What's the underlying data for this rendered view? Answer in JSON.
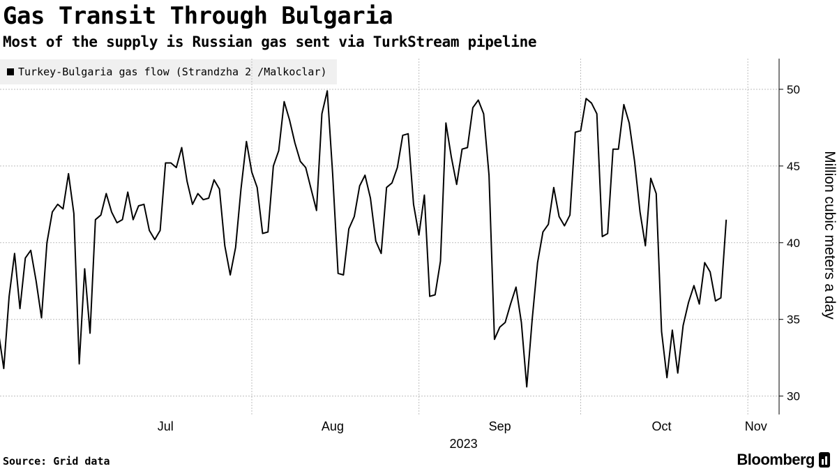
{
  "header": {
    "title": "Gas Transit Through Bulgaria",
    "subtitle": "Most of the supply is Russian gas sent via TurkStream pipeline"
  },
  "footer": {
    "source": "Source: Grid data",
    "brand": "Bloomberg",
    "brand_icon": "bar-chart-icon"
  },
  "chart_data": {
    "type": "line",
    "ylabel": "Million cubic meters a day",
    "xlabel": "2023",
    "ylim": [
      28.8,
      52
    ],
    "yticks": [
      30,
      35,
      40,
      45,
      50
    ],
    "grid": true,
    "y_axis_side": "right",
    "legend_position": "top-left",
    "x_range_day_of_year": [
      166.3,
      310.8
    ],
    "month_ticks": [
      {
        "label": "Jul",
        "day_of_year": 182,
        "centered": true
      },
      {
        "label": "Aug",
        "day_of_year": 213,
        "centered": true
      },
      {
        "label": "Sep",
        "day_of_year": 244,
        "centered": true
      },
      {
        "label": "Oct",
        "day_of_year": 274,
        "centered": true
      },
      {
        "label": "Nov",
        "day_of_year": 305,
        "centered": false
      }
    ],
    "series": [
      {
        "name": "Turkey-Bulgaria gas flow (Strandzha 2 /Malkoclar)",
        "color": "#000000",
        "start_date": "2023-06-15",
        "values": [
          34.2,
          31.8,
          36.5,
          39.3,
          35.7,
          39.0,
          39.5,
          37.5,
          35.1,
          40.0,
          42.0,
          42.5,
          42.2,
          44.5,
          41.9,
          32.1,
          38.3,
          34.1,
          41.5,
          41.8,
          43.2,
          42.0,
          41.3,
          41.5,
          43.3,
          41.5,
          42.4,
          42.5,
          40.8,
          40.2,
          40.8,
          45.2,
          45.2,
          44.9,
          46.2,
          44.0,
          42.5,
          43.2,
          42.8,
          42.9,
          44.1,
          43.5,
          39.8,
          37.9,
          39.7,
          43.5,
          46.6,
          44.6,
          43.6,
          40.6,
          40.7,
          45.0,
          46.0,
          49.2,
          48.0,
          46.5,
          45.3,
          44.9,
          43.5,
          42.1,
          48.4,
          49.9,
          44.5,
          38.0,
          37.9,
          40.9,
          41.7,
          43.7,
          44.4,
          42.9,
          40.1,
          39.3,
          43.6,
          43.9,
          44.9,
          47.0,
          47.1,
          42.5,
          40.5,
          43.1,
          36.5,
          36.6,
          38.8,
          47.8,
          45.6,
          43.8,
          46.1,
          46.2,
          48.8,
          49.3,
          48.4,
          44.4,
          33.7,
          34.5,
          34.8,
          36.0,
          37.1,
          34.8,
          30.6,
          35.0,
          38.7,
          40.7,
          41.2,
          43.6,
          41.7,
          41.1,
          41.8,
          47.2,
          47.3,
          49.4,
          49.1,
          48.4,
          40.4,
          40.6,
          46.1,
          46.1,
          49.0,
          47.8,
          45.3,
          42.0,
          39.8,
          44.2,
          43.2,
          34.2,
          31.2,
          34.3,
          31.5,
          34.6,
          36.1,
          37.2,
          36.0,
          38.7,
          38.1,
          36.2,
          36.4,
          41.5
        ]
      }
    ]
  }
}
